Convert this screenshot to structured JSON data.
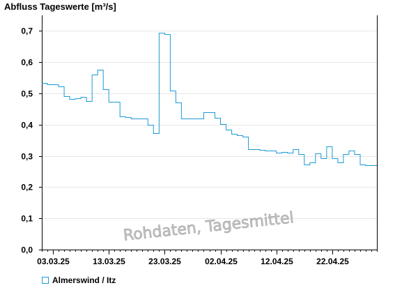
{
  "chart_data": {
    "type": "line",
    "title": "Abfluss Tageswerte [m³/s]",
    "xlabel": "",
    "ylabel": "",
    "ylim": [
      0,
      0.75
    ],
    "yticks": [
      0.0,
      0.1,
      0.2,
      0.3,
      0.4,
      0.5,
      0.6,
      0.7
    ],
    "ytick_labels": [
      "0,0",
      "0,1",
      "0,2",
      "0,3",
      "0,4",
      "0,5",
      "0,6",
      "0,7"
    ],
    "xticks": [
      "03.03.25",
      "13.03.25",
      "23.03.25",
      "02.04.25",
      "12.04.25",
      "22.04.25"
    ],
    "grid": true,
    "legend_position": "bottom-left",
    "watermark": "Rohdaten, Tagesmittel",
    "series": [
      {
        "name": "Almerswind / Itz",
        "color": "#1a9ad6",
        "step": true,
        "x": [
          "01.03.25",
          "02.03.25",
          "03.03.25",
          "04.03.25",
          "05.03.25",
          "06.03.25",
          "07.03.25",
          "08.03.25",
          "09.03.25",
          "10.03.25",
          "11.03.25",
          "12.03.25",
          "13.03.25",
          "14.03.25",
          "15.03.25",
          "16.03.25",
          "17.03.25",
          "18.03.25",
          "19.03.25",
          "20.03.25",
          "21.03.25",
          "22.03.25",
          "23.03.25",
          "24.03.25",
          "25.03.25",
          "26.03.25",
          "27.03.25",
          "28.03.25",
          "29.03.25",
          "30.03.25",
          "31.03.25",
          "01.04.25",
          "02.04.25",
          "03.04.25",
          "04.04.25",
          "05.04.25",
          "06.04.25",
          "07.04.25",
          "08.04.25",
          "09.04.25",
          "10.04.25",
          "11.04.25",
          "12.04.25",
          "13.04.25",
          "14.04.25",
          "15.04.25",
          "16.04.25",
          "17.04.25",
          "18.04.25",
          "19.04.25",
          "20.04.25",
          "21.04.25",
          "22.04.25",
          "23.04.25",
          "24.04.25",
          "25.04.25",
          "26.04.25",
          "27.04.25",
          "28.04.25",
          "29.04.25"
        ],
        "values": [
          0.533,
          0.53,
          0.528,
          0.522,
          0.492,
          0.482,
          0.485,
          0.488,
          0.475,
          0.56,
          0.575,
          0.513,
          0.473,
          0.473,
          0.427,
          0.423,
          0.42,
          0.42,
          0.42,
          0.4,
          0.373,
          0.695,
          0.69,
          0.51,
          0.47,
          0.42,
          0.42,
          0.42,
          0.42,
          0.44,
          0.44,
          0.422,
          0.402,
          0.385,
          0.37,
          0.365,
          0.362,
          0.322,
          0.322,
          0.32,
          0.318,
          0.318,
          0.31,
          0.312,
          0.31,
          0.322,
          0.305,
          0.272,
          0.278,
          0.308,
          0.292,
          0.33,
          0.293,
          0.278,
          0.305,
          0.318,
          0.305,
          0.272,
          0.27,
          0.27
        ]
      }
    ]
  }
}
